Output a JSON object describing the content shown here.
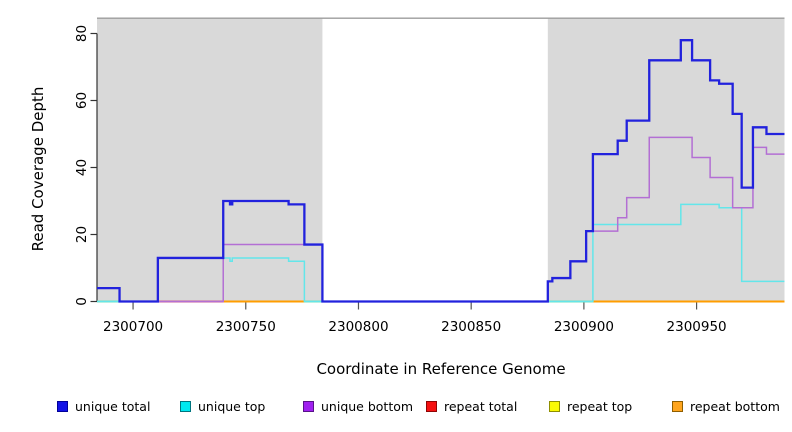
{
  "chart_data": {
    "type": "line",
    "subtype": "step-coverage",
    "title": "",
    "xlabel": "Coordinate in Reference Genome",
    "ylabel": "Read Coverage Depth",
    "xlim": [
      2300684,
      2300989
    ],
    "ylim": [
      0,
      84
    ],
    "x_ticks": [
      2300700,
      2300750,
      2300800,
      2300850,
      2300900,
      2300950
    ],
    "y_ticks": [
      0,
      20,
      40,
      60,
      80
    ],
    "grid": false,
    "legend_position": "bottom",
    "background_color": "#ffffff",
    "shaded_band_color": "#d9d9d9",
    "shaded_band_border": "#9c9c9c",
    "shaded_regions": [
      {
        "from": 2300684,
        "to": 2300784
      },
      {
        "from": 2300884,
        "to": 2300989
      }
    ],
    "series": [
      {
        "name": "repeat total",
        "color": "#e02020",
        "width": 1.8,
        "points": [
          [
            2300684,
            0
          ]
        ]
      },
      {
        "name": "repeat top",
        "color": "#f0f000",
        "width": 1.8,
        "points": [
          [
            2300684,
            0
          ]
        ]
      },
      {
        "name": "repeat bottom",
        "color": "#ff9d00",
        "width": 1.8,
        "points": [
          [
            2300684,
            0
          ]
        ]
      },
      {
        "name": "unique top",
        "color": "#63e6ea",
        "width": 1.5,
        "points": [
          [
            2300684,
            0
          ],
          [
            2300711,
            13
          ],
          [
            2300743,
            12
          ],
          [
            2300744,
            13
          ],
          [
            2300769,
            12
          ],
          [
            2300776,
            0
          ],
          [
            2300904,
            23
          ],
          [
            2300943,
            29
          ],
          [
            2300960,
            28
          ],
          [
            2300970,
            6
          ]
        ]
      },
      {
        "name": "unique bottom",
        "color": "#b36fd4",
        "width": 1.5,
        "points": [
          [
            2300684,
            4
          ],
          [
            2300694,
            0
          ],
          [
            2300740,
            17
          ],
          [
            2300784,
            0
          ],
          [
            2300884,
            6
          ],
          [
            2300886,
            7
          ],
          [
            2300894,
            12
          ],
          [
            2300901,
            21
          ],
          [
            2300915,
            25
          ],
          [
            2300919,
            31
          ],
          [
            2300929,
            49
          ],
          [
            2300948,
            43
          ],
          [
            2300956,
            37
          ],
          [
            2300966,
            28
          ],
          [
            2300975,
            46
          ],
          [
            2300981,
            44
          ]
        ]
      },
      {
        "name": "unique total",
        "color": "#2222dd",
        "width": 2.3,
        "points": [
          [
            2300684,
            4
          ],
          [
            2300694,
            0
          ],
          [
            2300711,
            13
          ],
          [
            2300740,
            30
          ],
          [
            2300743,
            29
          ],
          [
            2300744,
            30
          ],
          [
            2300769,
            29
          ],
          [
            2300776,
            17
          ],
          [
            2300784,
            0
          ],
          [
            2300884,
            6
          ],
          [
            2300886,
            7
          ],
          [
            2300894,
            12
          ],
          [
            2300901,
            21
          ],
          [
            2300904,
            44
          ],
          [
            2300915,
            48
          ],
          [
            2300919,
            54
          ],
          [
            2300929,
            72
          ],
          [
            2300943,
            78
          ],
          [
            2300948,
            72
          ],
          [
            2300956,
            66
          ],
          [
            2300960,
            65
          ],
          [
            2300966,
            56
          ],
          [
            2300970,
            34
          ],
          [
            2300975,
            52
          ],
          [
            2300981,
            50
          ]
        ]
      }
    ],
    "baseline_segments": [
      {
        "from": 2300684,
        "to": 2300694,
        "color": "#79dd9c"
      },
      {
        "from": 2300711,
        "to": 2300740,
        "color": "#d94f6b"
      },
      {
        "from": 2300740,
        "to": 2300776,
        "color": "#ff9d00"
      },
      {
        "from": 2300776,
        "to": 2300784,
        "color": "#79dd9c"
      },
      {
        "from": 2300884,
        "to": 2300904,
        "color": "#79dd9c"
      },
      {
        "from": 2300904,
        "to": 2300989,
        "color": "#ff9d00"
      }
    ],
    "legend": [
      {
        "label": "unique total",
        "fill": "#1212e6",
        "border": "#000099"
      },
      {
        "label": "unique top",
        "fill": "#00e8f0",
        "border": "#00747e"
      },
      {
        "label": "unique bottom",
        "fill": "#a020f0",
        "border": "#581389"
      },
      {
        "label": "repeat total",
        "fill": "#f51111",
        "border": "#8f0505"
      },
      {
        "label": "repeat top",
        "fill": "#fafa05",
        "border": "#8f8f00"
      },
      {
        "label": "repeat bottom",
        "fill": "#ffa51e",
        "border": "#8f5e00"
      }
    ]
  }
}
